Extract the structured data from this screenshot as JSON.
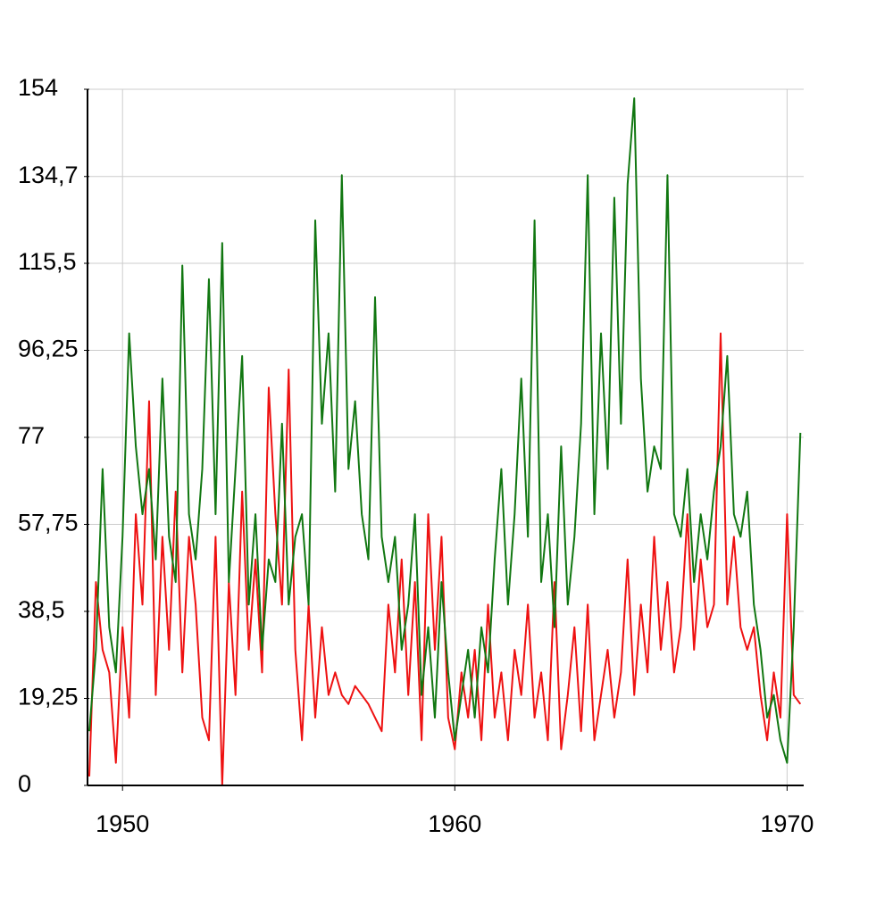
{
  "chart_data": {
    "type": "line",
    "x": [
      1949,
      1949.2,
      1949.4,
      1949.6,
      1949.8,
      1950,
      1950.2,
      1950.4,
      1950.6,
      1950.8,
      1951,
      1951.2,
      1951.4,
      1951.6,
      1951.8,
      1952,
      1952.2,
      1952.4,
      1952.6,
      1952.8,
      1953,
      1953.2,
      1953.4,
      1953.6,
      1953.8,
      1954,
      1954.2,
      1954.4,
      1954.6,
      1954.8,
      1955,
      1955.2,
      1955.4,
      1955.6,
      1955.8,
      1956,
      1956.2,
      1956.4,
      1956.6,
      1956.8,
      1957,
      1957.2,
      1957.4,
      1957.6,
      1957.8,
      1958,
      1958.2,
      1958.4,
      1958.6,
      1958.8,
      1959,
      1959.2,
      1959.4,
      1959.6,
      1959.8,
      1960,
      1960.2,
      1960.4,
      1960.6,
      1960.8,
      1961,
      1961.2,
      1961.4,
      1961.6,
      1961.8,
      1962,
      1962.2,
      1962.4,
      1962.6,
      1962.8,
      1963,
      1963.2,
      1963.4,
      1963.6,
      1963.8,
      1964,
      1964.2,
      1964.4,
      1964.6,
      1964.8,
      1965,
      1965.2,
      1965.4,
      1965.6,
      1965.8,
      1966,
      1966.2,
      1966.4,
      1966.6,
      1966.8,
      1967,
      1967.2,
      1967.4,
      1967.6,
      1967.8,
      1968,
      1968.2,
      1968.4,
      1968.6,
      1968.8,
      1969,
      1969.2,
      1969.4,
      1969.6,
      1969.8,
      1970,
      1970.2,
      1970.4
    ],
    "series": [
      {
        "color": "#ee1111",
        "values": [
          2,
          45,
          30,
          25,
          5,
          35,
          15,
          60,
          40,
          85,
          20,
          55,
          30,
          65,
          25,
          55,
          40,
          15,
          10,
          55,
          0,
          45,
          20,
          65,
          30,
          50,
          25,
          88,
          60,
          40,
          92,
          30,
          10,
          40,
          15,
          35,
          20,
          25,
          20,
          18,
          22,
          20,
          18,
          15,
          12,
          40,
          25,
          50,
          20,
          45,
          10,
          60,
          30,
          55,
          15,
          8,
          25,
          15,
          30,
          10,
          40,
          15,
          25,
          10,
          30,
          20,
          40,
          15,
          25,
          10,
          45,
          8,
          20,
          35,
          12,
          40,
          10,
          20,
          30,
          15,
          25,
          50,
          20,
          40,
          25,
          55,
          30,
          45,
          25,
          35,
          60,
          30,
          50,
          35,
          40,
          100,
          40,
          55,
          35,
          30,
          35,
          20,
          10,
          25,
          15,
          60,
          20,
          18
        ]
      },
      {
        "color": "#117711",
        "values": [
          12,
          30,
          70,
          35,
          25,
          55,
          100,
          75,
          60,
          70,
          50,
          90,
          55,
          45,
          115,
          60,
          50,
          70,
          112,
          60,
          120,
          45,
          70,
          95,
          40,
          60,
          30,
          50,
          45,
          80,
          40,
          55,
          60,
          40,
          125,
          80,
          100,
          65,
          135,
          70,
          85,
          60,
          50,
          108,
          55,
          45,
          55,
          30,
          40,
          60,
          20,
          35,
          15,
          45,
          25,
          10,
          20,
          30,
          15,
          35,
          25,
          50,
          70,
          40,
          60,
          90,
          55,
          125,
          45,
          60,
          35,
          75,
          40,
          55,
          80,
          135,
          60,
          100,
          70,
          130,
          80,
          133,
          152,
          90,
          65,
          75,
          70,
          135,
          60,
          55,
          70,
          45,
          60,
          50,
          65,
          75,
          95,
          60,
          55,
          65,
          40,
          30,
          15,
          20,
          10,
          5,
          35,
          78
        ]
      }
    ],
    "xlim": [
      1949,
      1970.5
    ],
    "xticks": [
      1950,
      1960,
      1970
    ],
    "ylim": [
      0,
      154
    ],
    "yticks": [
      0,
      {
        "value": 19.25,
        "label": "19,25"
      },
      {
        "value": 38.5,
        "label": "38,5"
      },
      {
        "value": 57.75,
        "label": "57,75"
      },
      77,
      {
        "value": 96.25,
        "label": "96,25"
      },
      {
        "value": 115.5,
        "label": "115,5"
      },
      {
        "value": 134.7,
        "label": "134,7"
      },
      154
    ],
    "grid": true
  }
}
